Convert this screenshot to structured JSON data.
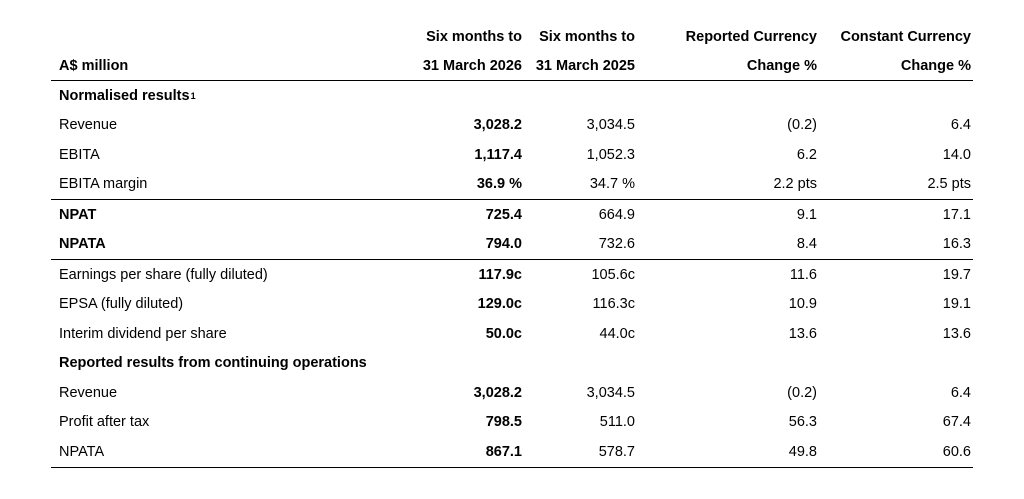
{
  "header": {
    "line1": [
      "",
      "Six months to",
      "Six months to",
      "Reported Currency",
      "Constant Currency"
    ],
    "line2": [
      "A$ million",
      "31 March 2026",
      "31 March 2025",
      "Change %",
      "Change %"
    ]
  },
  "rows": [
    {
      "label": "Normalised results",
      "sup": "1",
      "section": true,
      "values": [
        "",
        "",
        "",
        ""
      ]
    },
    {
      "label": "Revenue",
      "values": [
        "3,028.2",
        "3,034.5",
        "(0.2)",
        "6.4"
      ]
    },
    {
      "label": "EBITA",
      "values": [
        "1,117.4",
        "1,052.3",
        "6.2",
        "14.0"
      ]
    },
    {
      "label": "EBITA margin",
      "values": [
        "36.9 %",
        "34.7 %",
        "2.2 pts",
        "2.5 pts"
      ]
    },
    {
      "label": "NPAT",
      "bold": true,
      "rule": true,
      "values": [
        "725.4",
        "664.9",
        "9.1",
        "17.1"
      ]
    },
    {
      "label": "NPATA",
      "bold": true,
      "values": [
        "794.0",
        "732.6",
        "8.4",
        "16.3"
      ]
    },
    {
      "label": "Earnings per share (fully diluted)",
      "rule": true,
      "values": [
        "117.9c",
        "105.6c",
        "11.6",
        "19.7"
      ]
    },
    {
      "label": "EPSA (fully diluted)",
      "values": [
        "129.0c",
        "116.3c",
        "10.9",
        "19.1"
      ]
    },
    {
      "label": "Interim dividend per share",
      "values": [
        "50.0c",
        "44.0c",
        "13.6",
        "13.6"
      ]
    },
    {
      "label": "Reported results from continuing operations",
      "section": true,
      "values": [
        "",
        "",
        "",
        ""
      ]
    },
    {
      "label": "Revenue",
      "values": [
        "3,028.2",
        "3,034.5",
        "(0.2)",
        "6.4"
      ]
    },
    {
      "label": "Profit after tax",
      "values": [
        "798.5",
        "511.0",
        "56.3",
        "67.4"
      ]
    },
    {
      "label": "NPATA",
      "values": [
        "867.1",
        "578.7",
        "49.8",
        "60.6"
      ]
    }
  ]
}
